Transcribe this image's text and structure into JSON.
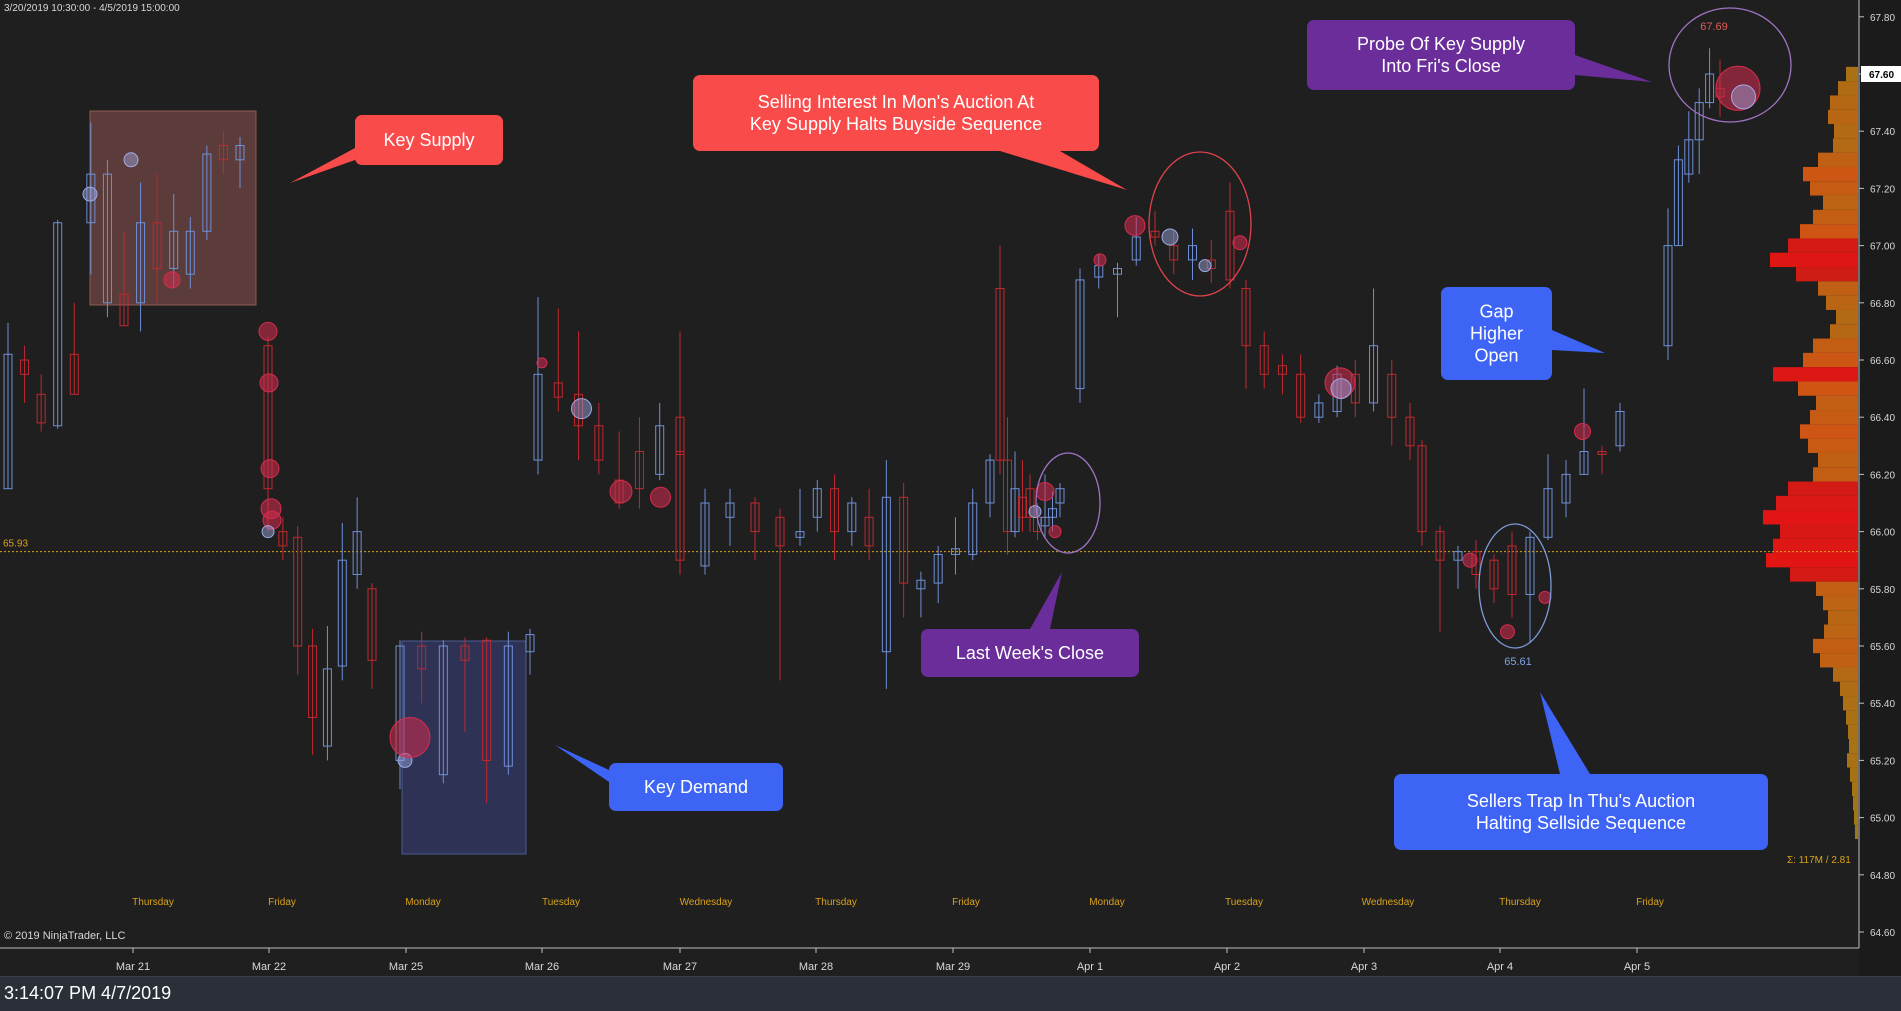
{
  "header": {
    "range": "3/20/2019 10:30:00 - 4/5/2019 15:00:00"
  },
  "copyright": "© 2019 NinjaTrader, LLC",
  "status_time": "3:14:07 PM 4/7/2019",
  "colors": {
    "background": "#1f1f1f",
    "up": "#6e8fd6",
    "down": "#c0282f",
    "ref_line": "#d9a21b"
  },
  "chart_data": {
    "type": "candlestick",
    "ylim": [
      64.6,
      67.82
    ],
    "y_ticks": [
      "64.60",
      "64.80",
      "65.00",
      "65.20",
      "65.40",
      "65.60",
      "65.80",
      "66.00",
      "66.20",
      "66.40",
      "66.60",
      "66.80",
      "67.00",
      "67.20",
      "67.40",
      "67.60",
      "67.80"
    ],
    "current_price": "67.60",
    "ref_line_label": "65.93",
    "ref_line_value": 65.93,
    "x_date_labels": [
      "Mar 21",
      "Mar 22",
      "Mar 25",
      "Mar 26",
      "Mar 27",
      "Mar 28",
      "Mar 29",
      "Apr 1",
      "Apr 2",
      "Apr 3",
      "Apr 4",
      "Apr 5"
    ],
    "session_labels": [
      "Thursday",
      "Friday",
      "Monday",
      "Tuesday",
      "Wednesday",
      "Thursday",
      "Friday",
      "Monday",
      "Tuesday",
      "Wednesday",
      "Thursday",
      "Friday"
    ],
    "volume_label": "Σ: 117M / 2.81",
    "price_labels": [
      {
        "text": "67.69",
        "value": 67.69
      },
      {
        "text": "65.61",
        "value": 65.61
      }
    ],
    "candles": [
      [
        66.15,
        66.62,
        66.73,
        66.15
      ],
      [
        66.6,
        66.55,
        66.65,
        66.45
      ],
      [
        66.48,
        66.38,
        66.55,
        66.35
      ],
      [
        66.37,
        67.08,
        67.09,
        66.36
      ],
      [
        66.62,
        66.48,
        66.8,
        66.48
      ],
      [
        67.08,
        67.25,
        67.43,
        66.9
      ],
      [
        66.8,
        67.25,
        67.3,
        66.75
      ],
      [
        66.83,
        66.72,
        67.05,
        66.72
      ],
      [
        66.8,
        67.08,
        67.22,
        66.7
      ],
      [
        67.08,
        66.92,
        67.25,
        66.8
      ],
      [
        66.92,
        67.05,
        67.18,
        66.85
      ],
      [
        66.9,
        67.05,
        67.1,
        66.85
      ],
      [
        67.05,
        67.32,
        67.35,
        67.02
      ],
      [
        67.35,
        67.3,
        67.4,
        67.25
      ],
      [
        67.3,
        67.35,
        67.38,
        67.2
      ],
      [
        66.65,
        66.15,
        66.68,
        66.0
      ],
      [
        66.0,
        65.95,
        66.05,
        65.9
      ],
      [
        65.98,
        65.6,
        66.02,
        65.5
      ],
      [
        65.6,
        65.35,
        65.66,
        65.22
      ],
      [
        65.25,
        65.52,
        65.67,
        65.2
      ],
      [
        65.53,
        65.9,
        66.03,
        65.48
      ],
      [
        65.85,
        66.0,
        66.12,
        65.8
      ],
      [
        65.8,
        65.55,
        65.82,
        65.45
      ],
      [
        65.2,
        65.6,
        65.62,
        65.1
      ],
      [
        65.6,
        65.52,
        65.65,
        65.4
      ],
      [
        65.15,
        65.6,
        65.62,
        65.12
      ],
      [
        65.6,
        65.55,
        65.63,
        65.3
      ],
      [
        65.62,
        65.2,
        65.63,
        65.05
      ],
      [
        65.18,
        65.6,
        65.65,
        65.15
      ],
      [
        65.58,
        65.64,
        65.66,
        65.5
      ],
      [
        66.25,
        66.55,
        66.82,
        66.2
      ],
      [
        66.52,
        66.47,
        66.78,
        66.42
      ],
      [
        66.48,
        66.37,
        66.7,
        66.25
      ],
      [
        66.37,
        66.25,
        66.45,
        66.2
      ],
      [
        66.18,
        66.1,
        66.35,
        66.08
      ],
      [
        66.28,
        66.15,
        66.4,
        66.08
      ],
      [
        66.2,
        66.37,
        66.45,
        66.18
      ],
      [
        66.4,
        66.27,
        66.7,
        66.15
      ],
      [
        66.28,
        65.9,
        66.4,
        65.85
      ],
      [
        65.88,
        66.1,
        66.15,
        65.85
      ],
      [
        66.05,
        66.1,
        66.15,
        65.95
      ],
      [
        66.1,
        66.0,
        66.12,
        65.9
      ],
      [
        66.05,
        65.95,
        66.08,
        65.48
      ],
      [
        65.98,
        66.0,
        66.15,
        65.95
      ],
      [
        66.05,
        66.15,
        66.18,
        66.0
      ],
      [
        66.15,
        66.0,
        66.2,
        65.9
      ],
      [
        66.0,
        66.1,
        66.12,
        65.95
      ],
      [
        66.05,
        65.95,
        66.15,
        65.9
      ],
      [
        65.58,
        66.12,
        66.25,
        65.45
      ],
      [
        66.12,
        65.82,
        66.17,
        65.7
      ],
      [
        65.8,
        65.83,
        65.86,
        65.7
      ],
      [
        65.82,
        65.92,
        65.95,
        65.75
      ],
      [
        65.92,
        65.94,
        66.05,
        65.85
      ],
      [
        65.92,
        66.1,
        66.15,
        65.9
      ],
      [
        66.1,
        66.25,
        66.27,
        66.05
      ],
      [
        66.85,
        66.25,
        67.0,
        66.2
      ],
      [
        66.25,
        66.0,
        66.4,
        65.92
      ],
      [
        66.0,
        66.15,
        66.28,
        65.98
      ],
      [
        66.12,
        66.05,
        66.25,
        66.0
      ],
      [
        66.15,
        66.05,
        66.2,
        66.0
      ],
      [
        66.05,
        66.0,
        66.1,
        65.97
      ],
      [
        66.02,
        66.05,
        66.2,
        65.98
      ],
      [
        66.05,
        66.08,
        66.14,
        66.0
      ],
      [
        66.1,
        66.15,
        66.17,
        66.05
      ],
      [
        66.5,
        66.88,
        66.92,
        66.45
      ],
      [
        66.89,
        66.93,
        66.97,
        66.85
      ],
      [
        66.9,
        66.92,
        66.94,
        66.75
      ],
      [
        66.95,
        67.03,
        67.1,
        66.93
      ],
      [
        67.05,
        67.03,
        67.12,
        67.0
      ],
      [
        67.0,
        66.95,
        67.05,
        66.9
      ],
      [
        66.95,
        67.0,
        67.06,
        66.88
      ],
      [
        66.95,
        66.92,
        67.02,
        66.87
      ],
      [
        67.12,
        66.88,
        67.22,
        66.85
      ],
      [
        66.85,
        66.65,
        66.88,
        66.5
      ],
      [
        66.65,
        66.55,
        66.7,
        66.5
      ],
      [
        66.58,
        66.55,
        66.62,
        66.48
      ],
      [
        66.55,
        66.4,
        66.62,
        66.38
      ],
      [
        66.4,
        66.45,
        66.48,
        66.38
      ],
      [
        66.42,
        66.55,
        66.58,
        66.4
      ],
      [
        66.55,
        66.45,
        66.6,
        66.4
      ],
      [
        66.45,
        66.65,
        66.85,
        66.42
      ],
      [
        66.55,
        66.4,
        66.6,
        66.3
      ],
      [
        66.4,
        66.3,
        66.45,
        66.25
      ],
      [
        66.3,
        66.0,
        66.32,
        65.95
      ],
      [
        66.0,
        65.9,
        66.02,
        65.65
      ],
      [
        65.9,
        65.93,
        65.95,
        65.8
      ],
      [
        65.93,
        65.85,
        65.97,
        65.8
      ],
      [
        65.9,
        65.8,
        65.92,
        65.75
      ],
      [
        65.95,
        65.78,
        66.0,
        65.7
      ],
      [
        65.78,
        65.98,
        66.0,
        65.61
      ],
      [
        65.98,
        66.15,
        66.27,
        65.97
      ],
      [
        66.1,
        66.2,
        66.25,
        66.05
      ],
      [
        66.2,
        66.28,
        66.5,
        66.2
      ],
      [
        66.28,
        66.27,
        66.3,
        66.2
      ],
      [
        66.3,
        66.42,
        66.45,
        66.28
      ],
      [
        66.65,
        67.0,
        67.13,
        66.6
      ],
      [
        67.0,
        67.3,
        67.35,
        67.0
      ],
      [
        67.25,
        67.37,
        67.47,
        67.22
      ],
      [
        67.37,
        67.5,
        67.55,
        67.25
      ],
      [
        67.5,
        67.6,
        67.69,
        67.48
      ],
      [
        67.55,
        67.52,
        67.65,
        67.45
      ]
    ],
    "profile": [
      [
        67.6,
        0.12
      ],
      [
        67.55,
        0.2
      ],
      [
        67.5,
        0.28
      ],
      [
        67.45,
        0.3
      ],
      [
        67.4,
        0.24
      ],
      [
        67.35,
        0.25
      ],
      [
        67.3,
        0.4
      ],
      [
        67.25,
        0.55
      ],
      [
        67.2,
        0.48
      ],
      [
        67.15,
        0.35
      ],
      [
        67.1,
        0.45
      ],
      [
        67.05,
        0.58
      ],
      [
        67.0,
        0.7
      ],
      [
        66.95,
        0.88
      ],
      [
        66.9,
        0.62
      ],
      [
        66.85,
        0.4
      ],
      [
        66.8,
        0.32
      ],
      [
        66.75,
        0.22
      ],
      [
        66.7,
        0.28
      ],
      [
        66.65,
        0.45
      ],
      [
        66.6,
        0.55
      ],
      [
        66.55,
        0.85
      ],
      [
        66.5,
        0.6
      ],
      [
        66.45,
        0.42
      ],
      [
        66.4,
        0.48
      ],
      [
        66.35,
        0.58
      ],
      [
        66.3,
        0.5
      ],
      [
        66.25,
        0.4
      ],
      [
        66.2,
        0.45
      ],
      [
        66.15,
        0.7
      ],
      [
        66.1,
        0.82
      ],
      [
        66.05,
        0.95
      ],
      [
        66.0,
        0.78
      ],
      [
        65.95,
        0.85
      ],
      [
        65.9,
        0.92
      ],
      [
        65.85,
        0.68
      ],
      [
        65.8,
        0.42
      ],
      [
        65.75,
        0.35
      ],
      [
        65.7,
        0.3
      ],
      [
        65.65,
        0.34
      ],
      [
        65.6,
        0.45
      ],
      [
        65.55,
        0.38
      ],
      [
        65.5,
        0.25
      ],
      [
        65.45,
        0.18
      ],
      [
        65.4,
        0.15
      ],
      [
        65.35,
        0.12
      ],
      [
        65.3,
        0.1
      ],
      [
        65.25,
        0.09
      ],
      [
        65.2,
        0.11
      ],
      [
        65.15,
        0.08
      ],
      [
        65.1,
        0.06
      ],
      [
        65.05,
        0.05
      ],
      [
        65.0,
        0.04
      ],
      [
        64.95,
        0.03
      ]
    ],
    "dots": [
      {
        "day": 0,
        "value": 67.18,
        "c": "b",
        "r": 7
      },
      {
        "day": 0,
        "value": 67.3,
        "c": "b",
        "r": 7
      },
      {
        "day": 0,
        "value": 66.88,
        "c": "r",
        "r": 8
      },
      {
        "day": 1,
        "value": 66.7,
        "c": "r",
        "r": 9
      },
      {
        "day": 1,
        "value": 66.52,
        "c": "r",
        "r": 9
      },
      {
        "day": 1,
        "value": 66.22,
        "c": "r",
        "r": 9
      },
      {
        "day": 1,
        "value": 66.08,
        "c": "r",
        "r": 10
      },
      {
        "day": 1,
        "value": 66.04,
        "c": "r",
        "r": 9
      },
      {
        "day": 1,
        "value": 66.0,
        "c": "b",
        "r": 6
      },
      {
        "day": 2,
        "value": 65.2,
        "c": "b",
        "r": 7
      },
      {
        "day": 2,
        "value": 65.28,
        "c": "r",
        "r": 20
      },
      {
        "day": 3,
        "value": 66.59,
        "c": "r",
        "r": 5
      },
      {
        "day": 3,
        "value": 66.43,
        "c": "b",
        "r": 10
      },
      {
        "day": 3,
        "value": 66.14,
        "c": "r",
        "r": 11
      },
      {
        "day": 3,
        "value": 66.12,
        "c": "r",
        "r": 10
      },
      {
        "day": 6,
        "value": 66.07,
        "c": "b",
        "r": 6
      },
      {
        "day": 6,
        "value": 66.14,
        "c": "r",
        "r": 9
      },
      {
        "day": 6,
        "value": 66.0,
        "c": "r",
        "r": 6
      },
      {
        "day": 7,
        "value": 66.95,
        "c": "r",
        "r": 6
      },
      {
        "day": 7,
        "value": 67.07,
        "c": "r",
        "r": 10
      },
      {
        "day": 7,
        "value": 67.03,
        "c": "b",
        "r": 8
      },
      {
        "day": 7,
        "value": 66.93,
        "c": "b",
        "r": 6
      },
      {
        "day": 7,
        "value": 67.01,
        "c": "r",
        "r": 7
      },
      {
        "day": 8,
        "value": 66.52,
        "c": "r",
        "r": 15
      },
      {
        "day": 8,
        "value": 66.5,
        "c": "b",
        "r": 10
      },
      {
        "day": 9,
        "value": 65.9,
        "c": "r",
        "r": 7
      },
      {
        "day": 9,
        "value": 65.65,
        "c": "r",
        "r": 7
      },
      {
        "day": 9,
        "value": 65.77,
        "c": "r",
        "r": 6
      },
      {
        "day": 9,
        "value": 66.35,
        "c": "r",
        "r": 8
      },
      {
        "day": 10,
        "value": 67.55,
        "c": "r",
        "r": 22
      },
      {
        "day": 10,
        "value": 67.52,
        "c": "b",
        "r": 12
      }
    ]
  },
  "annotations": [
    {
      "text": [
        "Key Supply"
      ],
      "color": "#fa4b4b"
    },
    {
      "text": [
        "Selling Interest In Mon's Auction At",
        "Key Supply Halts Buyside Sequence"
      ],
      "color": "#fa4b4b"
    },
    {
      "text": [
        "Probe Of Key Supply",
        "Into Fri's Close"
      ],
      "color": "#6a2d99"
    },
    {
      "text": [
        "Gap",
        "Higher",
        "Open"
      ],
      "color": "#3d64f5"
    },
    {
      "text": [
        "Last Week's Close"
      ],
      "color": "#6a2d99"
    },
    {
      "text": [
        "Key Demand"
      ],
      "color": "#3d64f5"
    },
    {
      "text": [
        "Sellers Trap In Thu's Auction",
        "Halting Sellside Sequence"
      ],
      "color": "#3d64f5"
    }
  ]
}
